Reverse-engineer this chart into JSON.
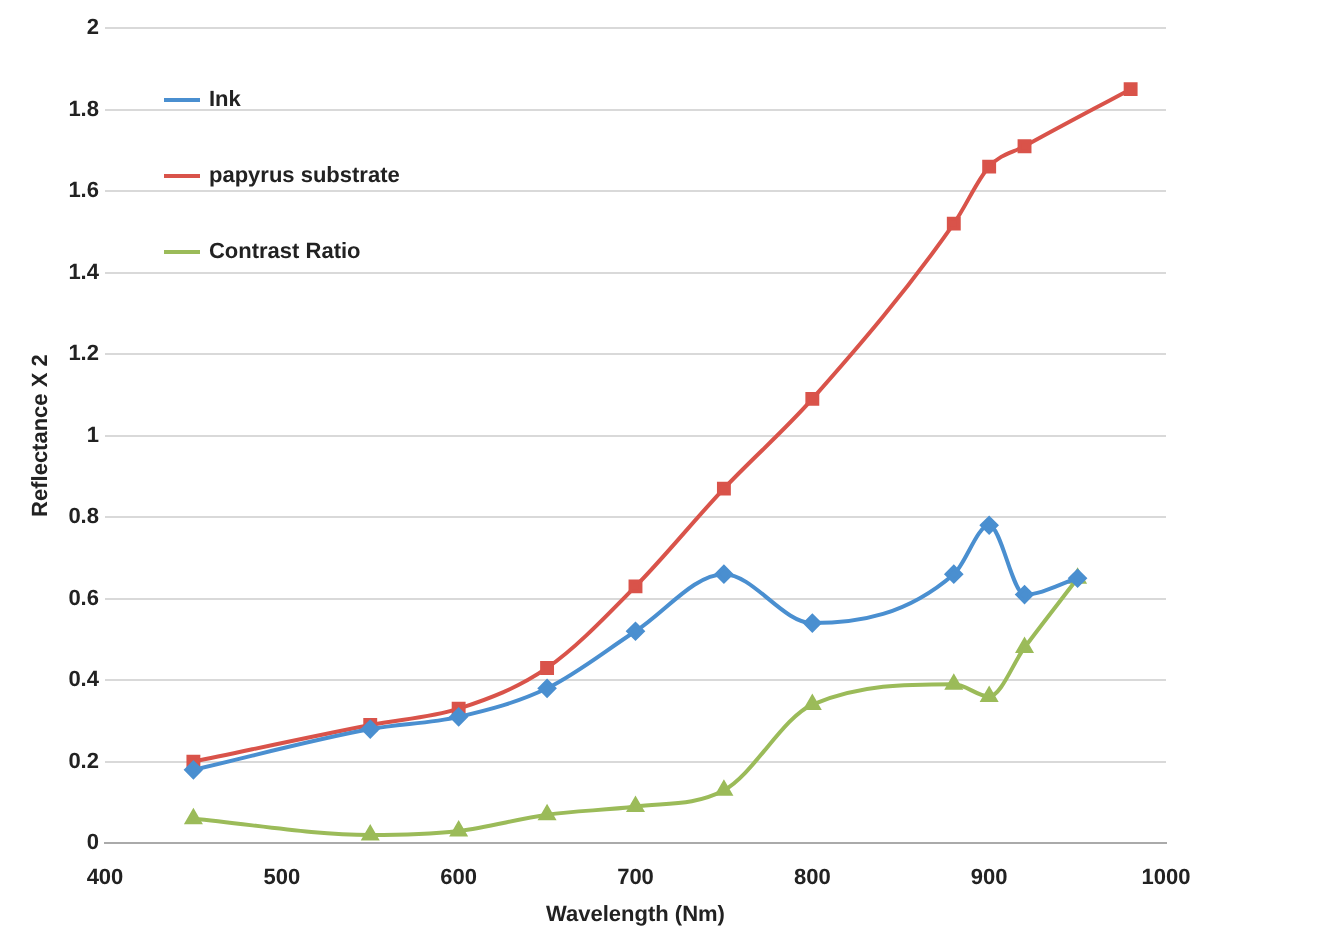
{
  "chart_data": {
    "type": "line",
    "xlabel": "Wavelength (Nm)",
    "ylabel": "Reflectance X 2",
    "xlim": [
      400,
      1000
    ],
    "xticks": [
      400,
      500,
      600,
      700,
      800,
      900,
      1000
    ],
    "ylim": [
      0,
      2
    ],
    "yticks": [
      0,
      0.2,
      0.4,
      0.6,
      0.8,
      1,
      1.2,
      1.4,
      1.6,
      1.8,
      2
    ],
    "grid": "y",
    "legend": "top left",
    "series": [
      {
        "name": "Ink",
        "color": "#4a8fd0",
        "marker": "diamond",
        "x": [
          450,
          550,
          600,
          650,
          700,
          750,
          800,
          880,
          900,
          920,
          950
        ],
        "values": [
          0.18,
          0.28,
          0.31,
          0.38,
          0.52,
          0.66,
          0.54,
          0.66,
          0.78,
          0.61,
          0.65
        ]
      },
      {
        "name": "papyrus substrate",
        "color": "#d9534a",
        "marker": "square",
        "x": [
          450,
          550,
          600,
          650,
          700,
          750,
          800,
          880,
          900,
          920,
          980
        ],
        "values": [
          0.2,
          0.29,
          0.33,
          0.43,
          0.63,
          0.87,
          1.09,
          1.52,
          1.66,
          1.71,
          1.85
        ]
      },
      {
        "name": "Contrast Ratio",
        "color": "#9bbb59",
        "marker": "triangle",
        "x": [
          450,
          550,
          600,
          650,
          700,
          750,
          800,
          880,
          900,
          920,
          950
        ],
        "values": [
          0.06,
          0.02,
          0.03,
          0.07,
          0.09,
          0.13,
          0.34,
          0.39,
          0.36,
          0.48,
          0.65
        ]
      }
    ]
  }
}
